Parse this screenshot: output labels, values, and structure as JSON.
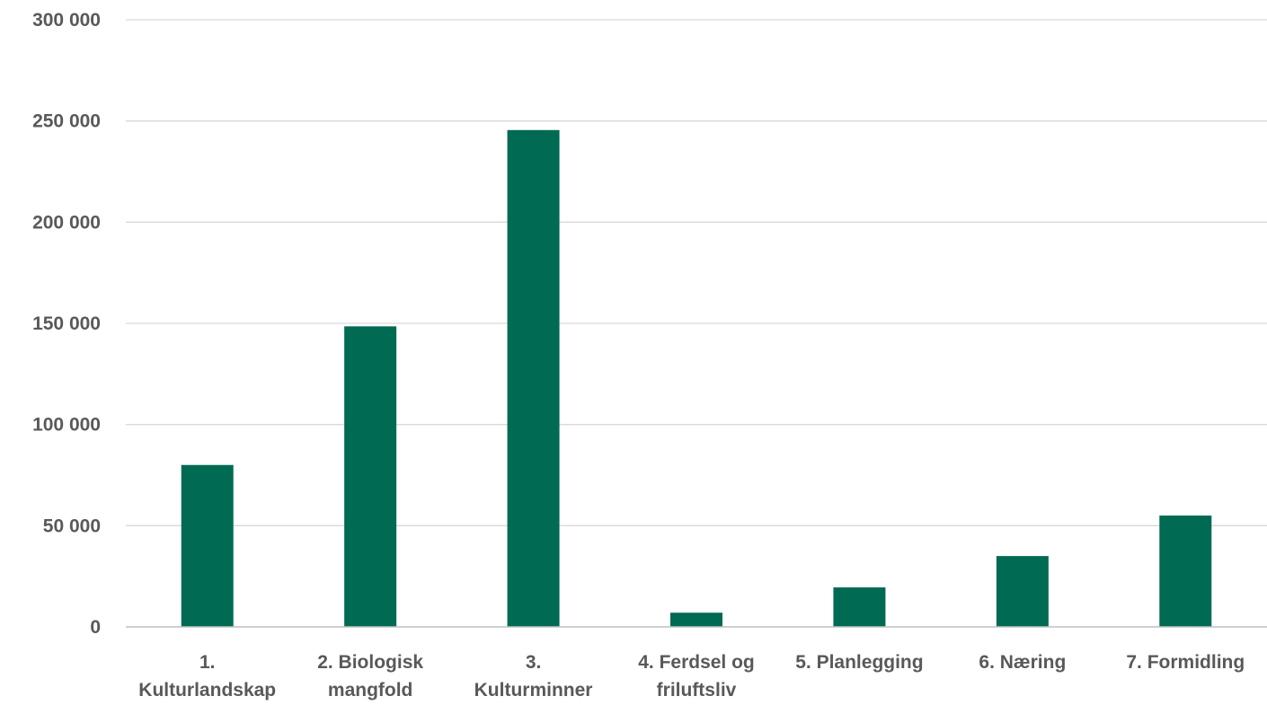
{
  "chart_data": {
    "type": "bar",
    "categories": [
      [
        "1.",
        "Kulturlandskap"
      ],
      [
        "2. Biologisk",
        "mangfold"
      ],
      [
        "3.",
        "Kulturminner"
      ],
      [
        "4. Ferdsel og",
        "friluftsliv"
      ],
      [
        "5. Planlegging"
      ],
      [
        "6. Næring"
      ],
      [
        "7. Formidling"
      ]
    ],
    "values": [
      80000,
      148500,
      245500,
      7000,
      19500,
      35000,
      55000
    ],
    "ylim": [
      0,
      300000
    ],
    "yticks": [
      0,
      50000,
      100000,
      150000,
      200000,
      250000,
      300000
    ],
    "ytick_labels": [
      "0",
      "50 000",
      "100 000",
      "150 000",
      "200 000",
      "250 000",
      "300 000"
    ],
    "grid": true,
    "bar_color": "#006a52"
  }
}
